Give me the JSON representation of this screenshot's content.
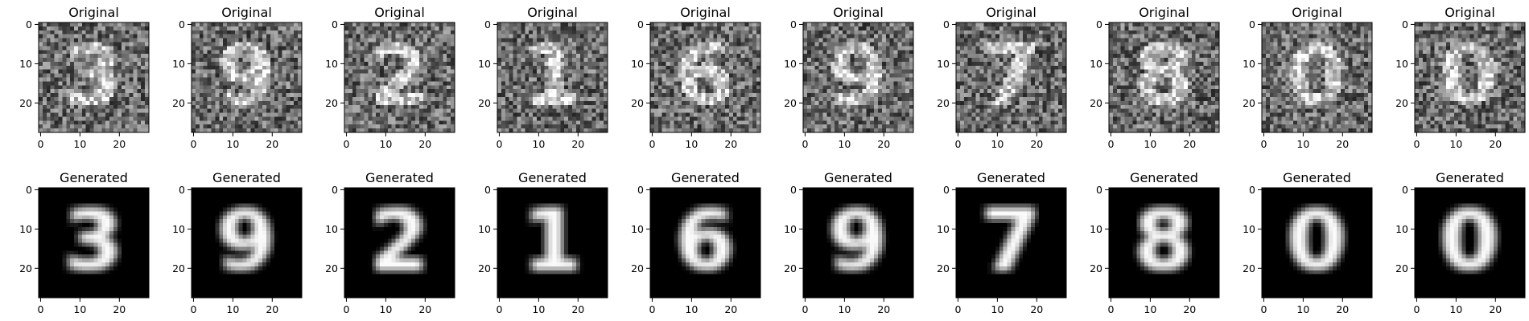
{
  "chart_data": {
    "type": "heatmap",
    "layout": {
      "rows": 2,
      "cols": 10
    },
    "image_size": [
      28,
      28
    ],
    "colormap": "gray",
    "xticks": [
      0,
      10,
      20
    ],
    "yticks": [
      0,
      10,
      20
    ],
    "row_titles": [
      "Original",
      "Generated"
    ],
    "noise_seeds": [
      11,
      23,
      37,
      41,
      53,
      67,
      71,
      83,
      97,
      101
    ],
    "panels": [
      {
        "title": "Original",
        "digit": "3",
        "noisy": true
      },
      {
        "title": "Original",
        "digit": "9",
        "noisy": true
      },
      {
        "title": "Original",
        "digit": "2",
        "noisy": true
      },
      {
        "title": "Original",
        "digit": "1",
        "noisy": true
      },
      {
        "title": "Original",
        "digit": "6",
        "noisy": true
      },
      {
        "title": "Original",
        "digit": "9",
        "noisy": true
      },
      {
        "title": "Original",
        "digit": "7",
        "noisy": true
      },
      {
        "title": "Original",
        "digit": "8",
        "noisy": true
      },
      {
        "title": "Original",
        "digit": "0",
        "noisy": true
      },
      {
        "title": "Original",
        "digit": "0",
        "noisy": true
      },
      {
        "title": "Generated",
        "digit": "3",
        "noisy": false
      },
      {
        "title": "Generated",
        "digit": "9",
        "noisy": false
      },
      {
        "title": "Generated",
        "digit": "2",
        "noisy": false
      },
      {
        "title": "Generated",
        "digit": "1",
        "noisy": false
      },
      {
        "title": "Generated",
        "digit": "6",
        "noisy": false
      },
      {
        "title": "Generated",
        "digit": "9",
        "noisy": false
      },
      {
        "title": "Generated",
        "digit": "7",
        "noisy": false
      },
      {
        "title": "Generated",
        "digit": "8",
        "noisy": false
      },
      {
        "title": "Generated",
        "digit": "0",
        "noisy": false
      },
      {
        "title": "Generated",
        "digit": "0",
        "noisy": false
      }
    ]
  }
}
